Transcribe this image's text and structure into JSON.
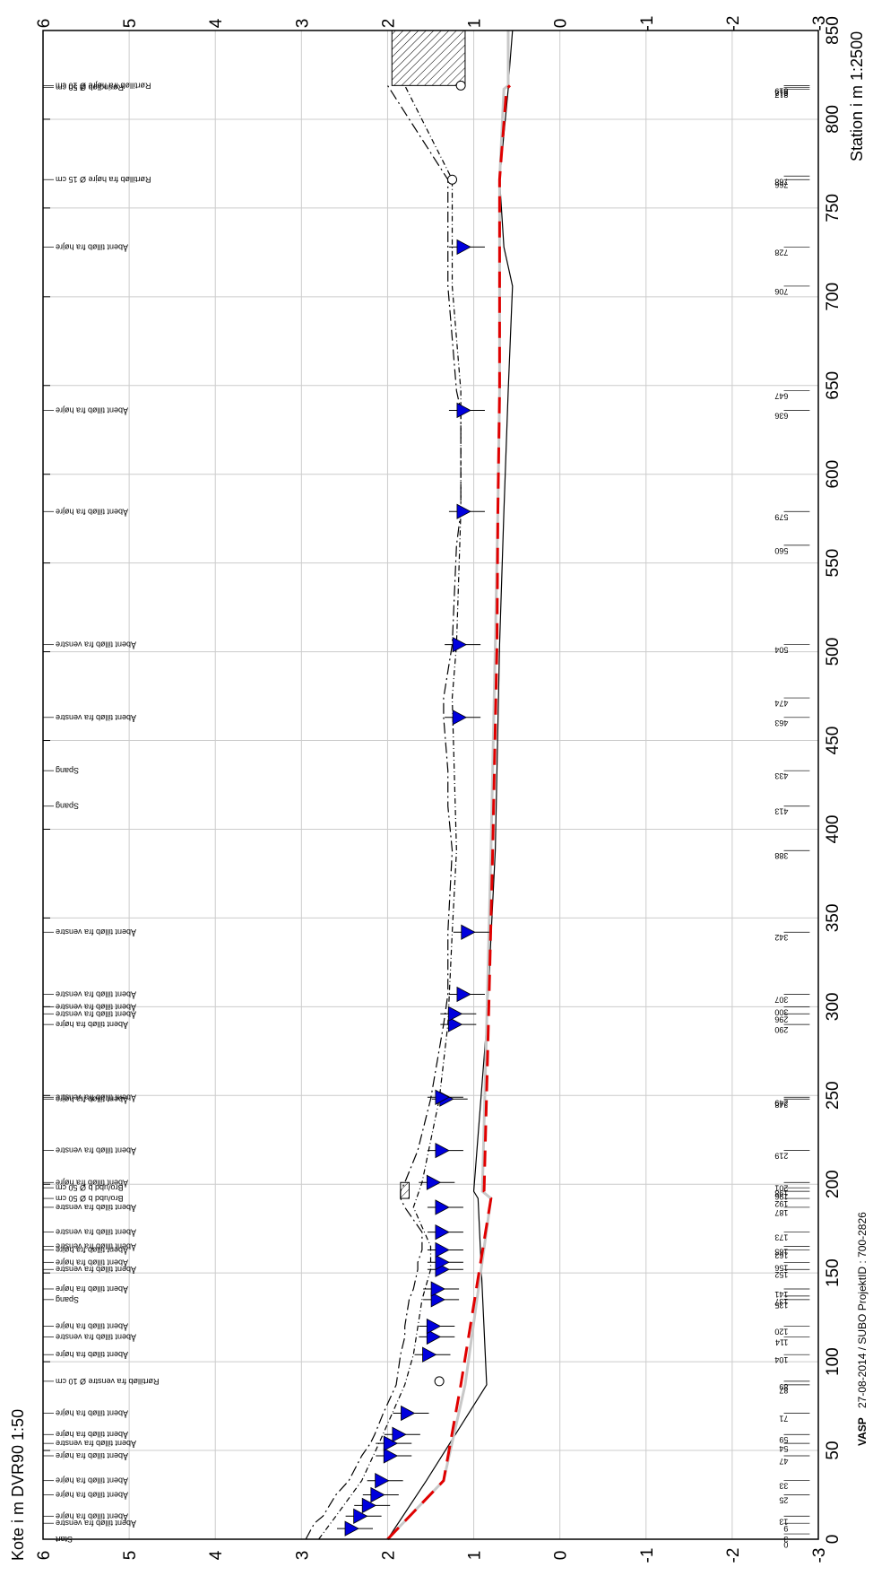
{
  "chart_data": {
    "type": "line",
    "ylabel": "Kote i m DVR90 1:50",
    "xlabel": "Station i m 1:2500",
    "xlim": [
      0,
      850
    ],
    "ylim": [
      -3,
      6
    ],
    "x_ticks": [
      0,
      50,
      100,
      150,
      200,
      250,
      300,
      350,
      400,
      450,
      500,
      550,
      600,
      650,
      700,
      750,
      800,
      850
    ],
    "y_ticks": [
      "6",
      "5",
      "4",
      "3",
      "2",
      "1",
      "0",
      "-1",
      "-2",
      "-3"
    ],
    "grid": true,
    "footer": {
      "company": "VASP",
      "credit": "27-08-2014 / SUBO   ProjektID : 700-2826"
    },
    "series": [
      {
        "key": "terrain",
        "color": "#000000",
        "dash": "12,4,2,4",
        "points": [
          [
            0,
            2.95
          ],
          [
            9,
            2.85
          ],
          [
            13,
            2.75
          ],
          [
            25,
            2.6
          ],
          [
            33,
            2.45
          ],
          [
            47,
            2.3
          ],
          [
            54,
            2.2
          ],
          [
            59,
            2.15
          ],
          [
            71,
            2.05
          ],
          [
            87,
            1.9
          ],
          [
            104,
            1.85
          ],
          [
            114,
            1.8
          ],
          [
            120,
            1.8
          ],
          [
            135,
            1.75
          ],
          [
            141,
            1.7
          ],
          [
            152,
            1.65
          ],
          [
            156,
            1.65
          ],
          [
            163,
            1.6
          ],
          [
            165,
            1.6
          ],
          [
            173,
            1.6
          ],
          [
            187,
            1.8
          ],
          [
            192,
            1.85
          ],
          [
            196,
            1.85
          ],
          [
            201,
            1.8
          ],
          [
            219,
            1.65
          ],
          [
            248,
            1.5
          ],
          [
            290,
            1.35
          ],
          [
            307,
            1.3
          ],
          [
            342,
            1.3
          ],
          [
            388,
            1.25
          ],
          [
            413,
            1.3
          ],
          [
            433,
            1.3
          ],
          [
            463,
            1.35
          ],
          [
            474,
            1.35
          ],
          [
            504,
            1.25
          ],
          [
            560,
            1.2
          ],
          [
            579,
            1.15
          ],
          [
            636,
            1.15
          ],
          [
            647,
            1.2
          ],
          [
            706,
            1.3
          ],
          [
            728,
            1.3
          ],
          [
            766,
            1.3
          ],
          [
            819,
            2.0
          ]
        ]
      },
      {
        "key": "bank-top",
        "color": "#000000",
        "dash": "6,3,1,3",
        "points": [
          [
            0,
            2.8
          ],
          [
            13,
            2.6
          ],
          [
            33,
            2.3
          ],
          [
            54,
            2.1
          ],
          [
            87,
            1.8
          ],
          [
            104,
            1.7
          ],
          [
            135,
            1.6
          ],
          [
            152,
            1.5
          ],
          [
            165,
            1.5
          ],
          [
            187,
            1.7
          ],
          [
            201,
            1.6
          ],
          [
            248,
            1.4
          ],
          [
            290,
            1.3
          ],
          [
            342,
            1.25
          ],
          [
            388,
            1.2
          ],
          [
            474,
            1.25
          ],
          [
            504,
            1.2
          ],
          [
            579,
            1.15
          ],
          [
            647,
            1.15
          ],
          [
            706,
            1.25
          ],
          [
            766,
            1.25
          ],
          [
            819,
            1.8
          ]
        ]
      },
      {
        "key": "bed",
        "color": "#000000",
        "dash": "",
        "points": [
          [
            0,
            2.0
          ],
          [
            33,
            1.55
          ],
          [
            87,
            0.85
          ],
          [
            192,
            0.95
          ],
          [
            196,
            1.0
          ],
          [
            290,
            0.85
          ],
          [
            388,
            0.75
          ],
          [
            504,
            0.7
          ],
          [
            579,
            0.65
          ],
          [
            647,
            0.6
          ],
          [
            706,
            0.55
          ],
          [
            728,
            0.65
          ],
          [
            766,
            0.7
          ],
          [
            817,
            0.6
          ],
          [
            819,
            0.6
          ],
          [
            850,
            0.55
          ]
        ]
      },
      {
        "key": "design-bed",
        "color": "#c8c8c8",
        "dash": "",
        "points": [
          [
            0,
            2.0
          ],
          [
            33,
            1.35
          ],
          [
            87,
            1.1
          ],
          [
            192,
            0.8
          ],
          [
            196,
            0.9
          ],
          [
            290,
            0.85
          ],
          [
            388,
            0.8
          ],
          [
            504,
            0.75
          ],
          [
            579,
            0.72
          ],
          [
            647,
            0.7
          ],
          [
            706,
            0.7
          ],
          [
            766,
            0.7
          ],
          [
            817,
            0.65
          ],
          [
            819,
            0.6
          ],
          [
            850,
            0.6
          ]
        ]
      },
      {
        "key": "regulation-line",
        "color": "#e00000",
        "dash": "18,10",
        "points": [
          [
            0,
            2.0
          ],
          [
            33,
            1.35
          ],
          [
            87,
            1.15
          ],
          [
            192,
            0.8
          ],
          [
            196,
            0.88
          ],
          [
            290,
            0.83
          ],
          [
            388,
            0.78
          ],
          [
            504,
            0.73
          ],
          [
            579,
            0.72
          ],
          [
            647,
            0.7
          ],
          [
            706,
            0.7
          ],
          [
            766,
            0.7
          ],
          [
            817,
            0.62
          ],
          [
            819,
            0.58
          ]
        ]
      }
    ],
    "water_markers": [
      {
        "x": 6,
        "y": 2.4
      },
      {
        "x": 13,
        "y": 2.3
      },
      {
        "x": 19,
        "y": 2.2
      },
      {
        "x": 25,
        "y": 2.1
      },
      {
        "x": 33,
        "y": 2.05
      },
      {
        "x": 47,
        "y": 1.95
      },
      {
        "x": 54,
        "y": 1.95
      },
      {
        "x": 59,
        "y": 1.85
      },
      {
        "x": 71,
        "y": 1.75
      },
      {
        "x": 104,
        "y": 1.5
      },
      {
        "x": 114,
        "y": 1.45
      },
      {
        "x": 120,
        "y": 1.45
      },
      {
        "x": 135,
        "y": 1.4
      },
      {
        "x": 141,
        "y": 1.4
      },
      {
        "x": 152,
        "y": 1.35
      },
      {
        "x": 156,
        "y": 1.35
      },
      {
        "x": 163,
        "y": 1.35
      },
      {
        "x": 173,
        "y": 1.35
      },
      {
        "x": 187,
        "y": 1.35
      },
      {
        "x": 201,
        "y": 1.45
      },
      {
        "x": 219,
        "y": 1.35
      },
      {
        "x": 248,
        "y": 1.3
      },
      {
        "x": 249,
        "y": 1.35
      },
      {
        "x": 290,
        "y": 1.2
      },
      {
        "x": 296,
        "y": 1.2
      },
      {
        "x": 307,
        "y": 1.1
      },
      {
        "x": 342,
        "y": 1.05
      },
      {
        "x": 463,
        "y": 1.15
      },
      {
        "x": 504,
        "y": 1.15
      },
      {
        "x": 579,
        "y": 1.1
      },
      {
        "x": 636,
        "y": 1.1
      },
      {
        "x": 728,
        "y": 1.1
      }
    ],
    "circle_markers": [
      {
        "x": 89,
        "y": 1.4
      },
      {
        "x": 766,
        "y": 1.25
      },
      {
        "x": 819,
        "y": 1.15
      }
    ],
    "culverts": [
      {
        "x1": 192,
        "x2": 201,
        "y1": 1.75,
        "y2": 1.85
      },
      {
        "x1": 819,
        "x2": 850,
        "y1": 1.1,
        "y2": 1.95
      }
    ],
    "stations": [
      "0",
      "3",
      "9",
      "13",
      "25",
      "33",
      "47",
      "54",
      "59",
      "71",
      "87",
      "89",
      "104",
      "114",
      "120",
      "135",
      "137",
      "141",
      "152",
      "156",
      "163",
      "165",
      "173",
      "187",
      "192",
      "196",
      "198",
      "201",
      "219",
      "248",
      "249",
      "290",
      "296",
      "300",
      "307",
      "342",
      "388",
      "413",
      "433",
      "463",
      "474",
      "504",
      "560",
      "579",
      "636",
      "647",
      "706",
      "728",
      "766",
      "768",
      "817",
      "818",
      "819"
    ],
    "annotations": [
      {
        "x": 0,
        "text": "Start"
      },
      {
        "x": 9,
        "text": "Åbent tilløb fra venstre"
      },
      {
        "x": 13,
        "text": "Åbent tilløb fra højre"
      },
      {
        "x": 25,
        "text": "Åbent tilløb fra højre"
      },
      {
        "x": 33,
        "text": "Åbent tilløb fra højre"
      },
      {
        "x": 47,
        "text": "Åbent tilløb fra højre"
      },
      {
        "x": 54,
        "text": "Åbent tilløb fra venstre"
      },
      {
        "x": 59,
        "text": "Åbent tilløb fra højre"
      },
      {
        "x": 71,
        "text": "Åbent tilløb fra højre"
      },
      {
        "x": 89,
        "text": "Rørtilløb fra venstre Ø 10 cm"
      },
      {
        "x": 104,
        "text": "Åbent tilløb fra højre"
      },
      {
        "x": 114,
        "text": "Åbent tilløb fra venstre"
      },
      {
        "x": 120,
        "text": "Åbent tilløb fra højre"
      },
      {
        "x": 135,
        "text": "Spang"
      },
      {
        "x": 141,
        "text": "Åbent tilløb fra højre"
      },
      {
        "x": 152,
        "text": "Åbent tilløb fra venstre"
      },
      {
        "x": 156,
        "text": "Åbent tilløb fra højre"
      },
      {
        "x": 163,
        "text": "Åbent tilløb fra højre"
      },
      {
        "x": 165,
        "text": "Åbent tilløb fra venstre"
      },
      {
        "x": 173,
        "text": "Åbent tilløb fra venstre"
      },
      {
        "x": 187,
        "text": "Åbent tilløb fra venstre"
      },
      {
        "x": 192,
        "text": "Bro/ubd b Ø 50 cm"
      },
      {
        "x": 198,
        "text": "Bro/ubd b Ø 50 cm"
      },
      {
        "x": 201,
        "text": "Åbent tilløb fra højre"
      },
      {
        "x": 219,
        "text": "Åbent tilløb fra venstre"
      },
      {
        "x": 248,
        "text": "Åbent tilløb fra højre"
      },
      {
        "x": 249,
        "text": "Åbent tilløb fra venstre"
      },
      {
        "x": 290,
        "text": "Åbent tilløb fra højre"
      },
      {
        "x": 296,
        "text": "Åbent tilløb fra venstre"
      },
      {
        "x": 300,
        "text": "Åbent tilløb fra venstre"
      },
      {
        "x": 307,
        "text": "Åbent tilløb fra venstre"
      },
      {
        "x": 342,
        "text": "Åbent tilløb fra venstre"
      },
      {
        "x": 413,
        "text": "Spang"
      },
      {
        "x": 433,
        "text": "Spang"
      },
      {
        "x": 463,
        "text": "Åbent tilløb fra venstre"
      },
      {
        "x": 504,
        "text": "Åbent tilløb fra venstre"
      },
      {
        "x": 579,
        "text": "Åbent tilløb fra højre"
      },
      {
        "x": 636,
        "text": "Åbent tilløb fra højre"
      },
      {
        "x": 728,
        "text": "Åbent tilløb fra højre"
      },
      {
        "x": 766,
        "text": "Rørtilløb fra højre Ø 15 cm"
      },
      {
        "x": 818,
        "text": "Rørindløb Ø 50 cm"
      },
      {
        "x": 819,
        "text": "Rørtilløb fra højre Ø 10 cm"
      }
    ]
  }
}
